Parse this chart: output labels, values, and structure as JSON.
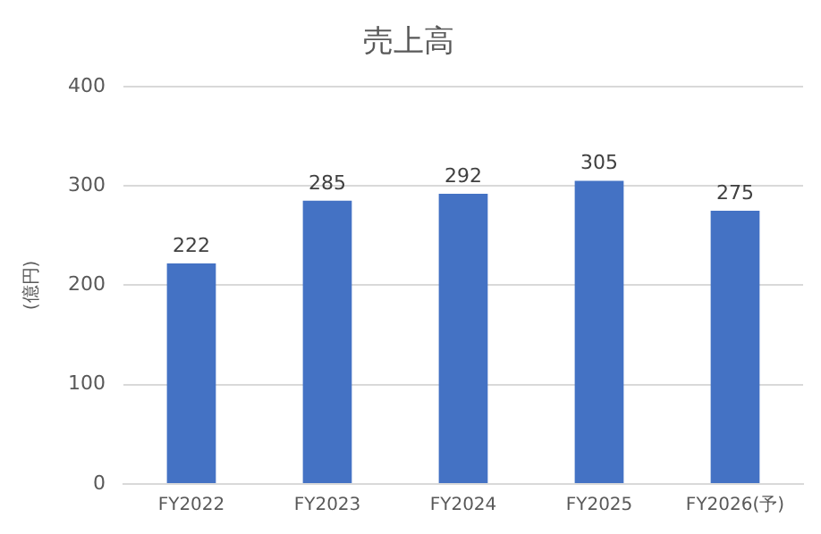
{
  "chart_data": {
    "type": "bar",
    "title": "売上高",
    "ylabel": "(億円)",
    "categories": [
      "FY2022",
      "FY2023",
      "FY2024",
      "FY2025",
      "FY2026(予)"
    ],
    "values": [
      222,
      285,
      292,
      305,
      275
    ],
    "color": "#4472c4",
    "ylim": [
      0,
      400
    ],
    "yticks": [
      0,
      100,
      200,
      300,
      400
    ],
    "grid": "y",
    "data_labels": true,
    "legend": false
  }
}
